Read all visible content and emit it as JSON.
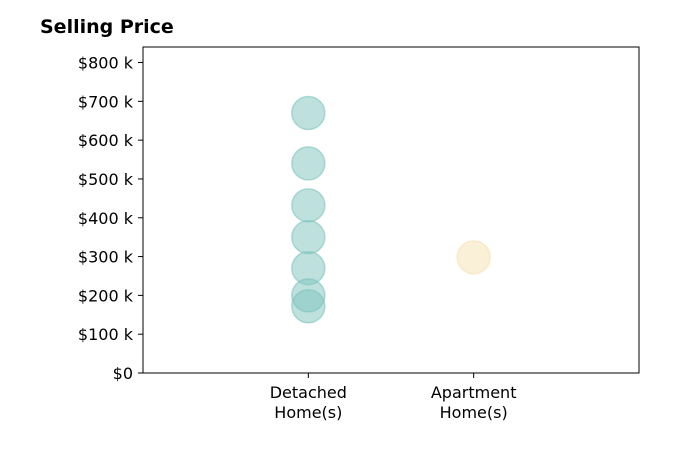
{
  "chart_data": {
    "type": "scatter",
    "title": "Selling Price",
    "xlabel": "",
    "ylabel": "",
    "categories": [
      "Detached\nHome(s)",
      "Apartment\nHome(s)"
    ],
    "xlim": [
      0,
      3
    ],
    "ylim": [
      0,
      840000
    ],
    "yticks": [
      0,
      100000,
      200000,
      300000,
      400000,
      500000,
      600000,
      700000,
      800000
    ],
    "ytick_labels": [
      "$0",
      "$100 k",
      "$200 k",
      "$300 k",
      "$400 k",
      "$500 k",
      "$600 k",
      "$700 k",
      "$800 k"
    ],
    "grid": false,
    "series": [
      {
        "category_index": 0,
        "color": "#7ec4bd",
        "values": [
          670000,
          540000,
          432000,
          350000,
          270000,
          200000,
          172000
        ]
      },
      {
        "category_index": 1,
        "color": "#f6e1b0",
        "values": [
          298000
        ]
      }
    ]
  }
}
